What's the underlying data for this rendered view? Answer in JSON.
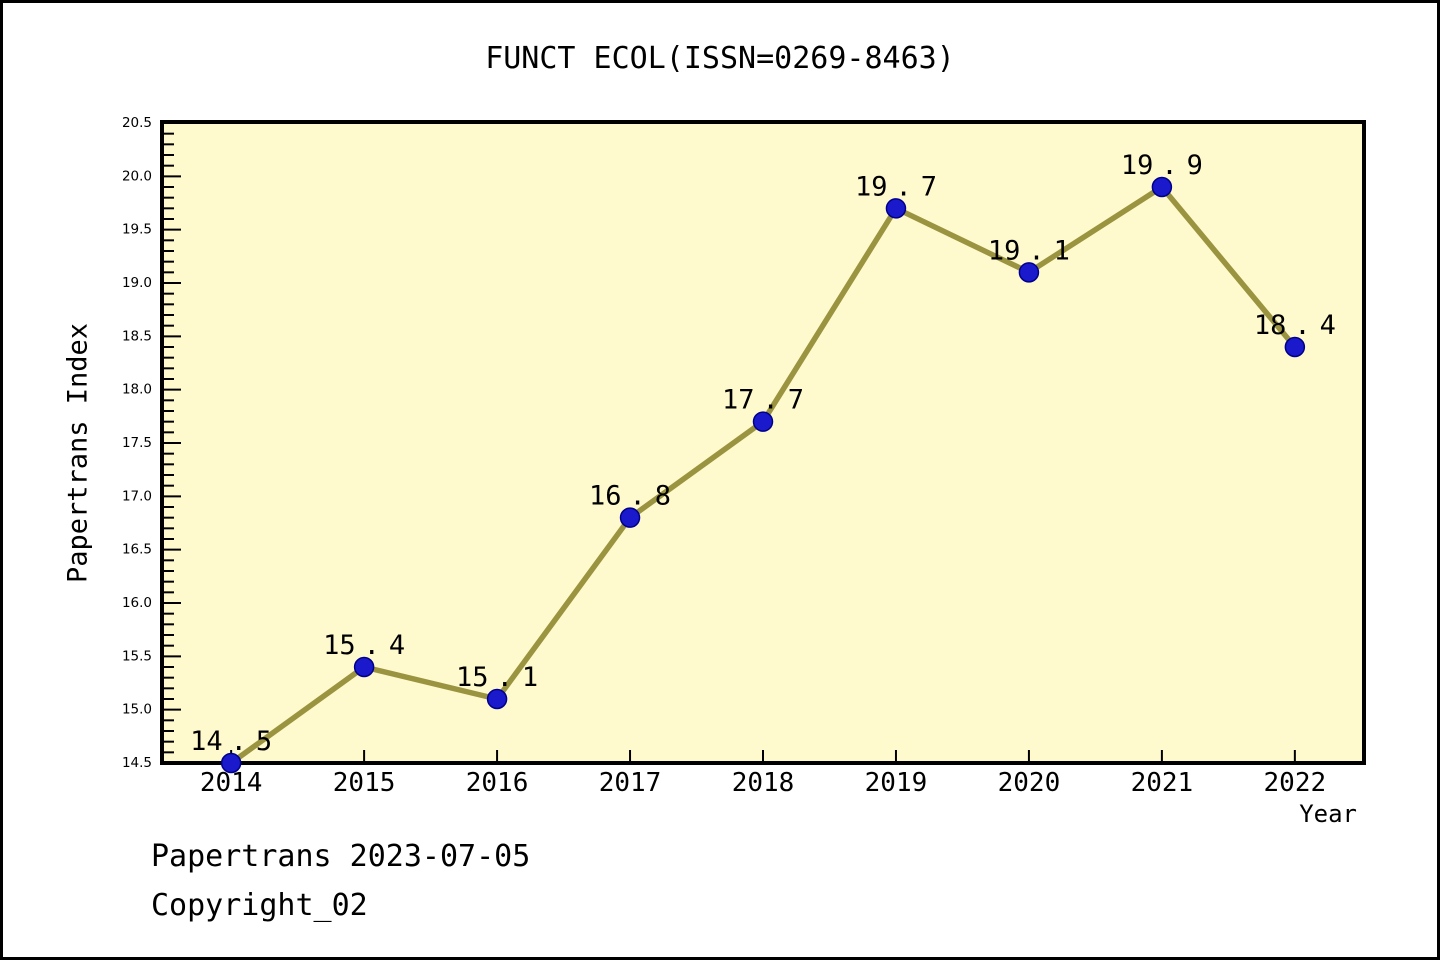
{
  "title": "FUNCT ECOL(ISSN=0269-8463)",
  "footer": {
    "line1": "Papertrans 2023-07-05",
    "line2": "Copyright_02"
  },
  "chart_data": {
    "type": "line",
    "title": "FUNCT ECOL(ISSN=0269-8463)",
    "x": [
      2014,
      2015,
      2016,
      2017,
      2018,
      2019,
      2020,
      2021,
      2022
    ],
    "values": [
      14.5,
      15.4,
      15.1,
      16.8,
      17.7,
      19.7,
      19.1,
      19.9,
      18.4
    ],
    "point_labels": [
      "14.5",
      "15.4",
      "15.1",
      "16.8",
      "17.7",
      "19.7",
      "19.1",
      "19.9",
      "18.4"
    ],
    "x_tick_labels": [
      "2014",
      "2015",
      "2016",
      "2017",
      "2018",
      "2019",
      "2020",
      "2021",
      "2022"
    ],
    "xlabel": "Year",
    "ylabel": "Papertrans Index",
    "ylim": [
      14.5,
      20.5
    ],
    "y_major_step": 0.5,
    "y_minor_step": 0.1,
    "grid": false,
    "legend": null,
    "colors": {
      "plot_bg": "#FFFACD",
      "line": "#9A9440",
      "marker": "#1A1ACC",
      "marker_edge": "#00008B",
      "axis": "#000000",
      "text": "#000000"
    }
  }
}
